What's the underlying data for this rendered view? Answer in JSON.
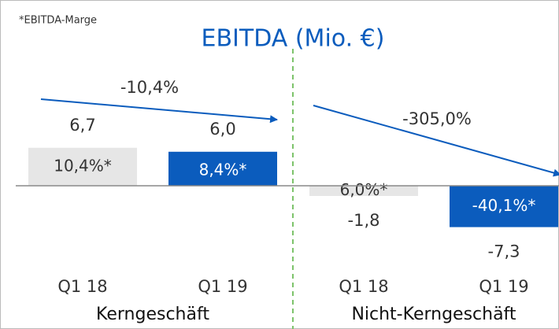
{
  "chart_data": {
    "type": "bar",
    "title": "EBITDA (Mio. €)",
    "note": "*EBITDA-Marge",
    "colors": [
      "#e6e6e6",
      "#0b5cbd"
    ],
    "groups": [
      {
        "name": "Kerngeschäft",
        "categories": [
          "Q1 18",
          "Q1 19"
        ],
        "values": [
          6.7,
          6.0
        ],
        "value_labels": [
          "6,7",
          "6,0"
        ],
        "margin_labels": [
          "10,4%*",
          "8,4%*"
        ],
        "change": "-10,4%"
      },
      {
        "name": "Nicht-Kerngeschäft",
        "categories": [
          "Q1 18",
          "Q1 19"
        ],
        "values": [
          -1.8,
          -7.3
        ],
        "value_labels": [
          "-1,8",
          "-7,3"
        ],
        "margin_labels": [
          "6,0%*",
          "-40,1%*"
        ],
        "change": "-305,0%"
      }
    ]
  }
}
